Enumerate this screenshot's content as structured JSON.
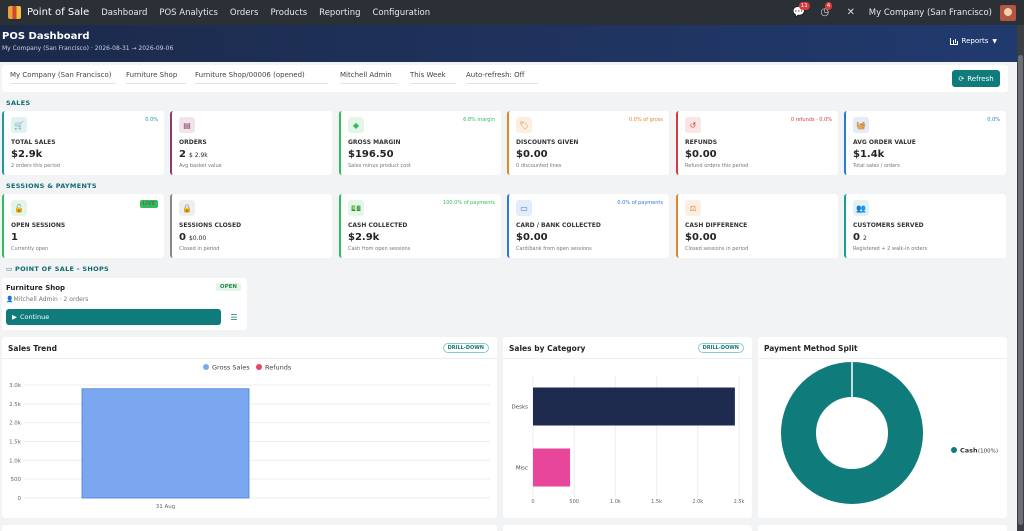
{
  "navbar": {
    "app_name": "Point of Sale",
    "items": [
      "Dashboard",
      "POS Analytics",
      "Orders",
      "Products",
      "Reporting",
      "Configuration"
    ],
    "messages_count": "11",
    "activity_count": "4",
    "company": "My Company (San Francisco)"
  },
  "header": {
    "title": "POS Dashboard",
    "subtitle": "My Company (San Francisco)  ·  2026-08-31 → 2026-09-06",
    "reports_label": "Reports"
  },
  "filters": {
    "company": "My Company (San Francisco)",
    "shop": "Furniture Shop",
    "session": "Furniture Shop/00006 (opened)",
    "user": "Mitchell Admin",
    "period": "This Week",
    "auto_refresh": "Auto-refresh: Off",
    "refresh_label": "Refresh"
  },
  "sales_section": {
    "label": "SALES",
    "cards": [
      {
        "icon": "cart-icon",
        "label": "TOTAL SALES",
        "value": "$2.9k",
        "extra": "",
        "sub": "2 orders this period",
        "tag": "0.0%",
        "color": "#1a9b9b"
      },
      {
        "icon": "receipt-icon",
        "label": "ORDERS",
        "value": "2",
        "extra": "$ 2.9k",
        "sub": "Avg basket value",
        "tag": "",
        "color": "#8e3a6a"
      },
      {
        "icon": "gem-icon",
        "label": "GROSS MARGIN",
        "value": "$196.50",
        "extra": "",
        "sub": "Sales minus product cost",
        "tag": "6.8% margin",
        "color": "#2ebf5a"
      },
      {
        "icon": "tag-icon",
        "label": "DISCOUNTS GIVEN",
        "value": "$0.00",
        "extra": "",
        "sub": "0 discounted lines",
        "tag": "0.0% of gross",
        "color": "#e0862a"
      },
      {
        "icon": "undo-icon",
        "label": "REFUNDS",
        "value": "$0.00",
        "extra": "",
        "sub": "Refund orders this period",
        "tag": "0 refunds · 0.0%",
        "color": "#d93b3b"
      },
      {
        "icon": "basket-icon",
        "label": "AVG ORDER VALUE",
        "value": "$1.4k",
        "extra": "",
        "sub": "Total sales / orders",
        "tag": "0.0%",
        "color": "#2a7ad9"
      }
    ]
  },
  "sessions_section": {
    "label": "SESSIONS & PAYMENTS",
    "cards": [
      {
        "icon": "unlock-icon",
        "label": "OPEN SESSIONS",
        "value": "1",
        "extra": "",
        "sub": "Currently open",
        "tag": "LIVE",
        "color": "#2ebf5a"
      },
      {
        "icon": "lock-icon",
        "label": "SESSIONS CLOSED",
        "value": "0",
        "extra": "$0.00",
        "sub": "Closed in period",
        "tag": "",
        "color": "#888888"
      },
      {
        "icon": "cash-icon",
        "label": "CASH COLLECTED",
        "value": "$2.9k",
        "extra": "",
        "sub": "Cash from open sessions",
        "tag": "100.0% of payments",
        "color": "#2ebf5a"
      },
      {
        "icon": "credit-card-icon",
        "label": "CARD / BANK COLLECTED",
        "value": "$0.00",
        "extra": "",
        "sub": "Card/bank from open sessions",
        "tag": "0.0% of payments",
        "color": "#2a7ad9"
      },
      {
        "icon": "scale-icon",
        "label": "CASH DIFFERENCE",
        "value": "$0.00",
        "extra": "",
        "sub": "Closed sessions in period",
        "tag": "",
        "color": "#e0862a"
      },
      {
        "icon": "users-icon",
        "label": "CUSTOMERS SERVED",
        "value": "0",
        "extra": "2",
        "sub": "Registered + 2 walk-in orders",
        "tag": "",
        "color": "#1a9b9b"
      }
    ]
  },
  "shops_section": {
    "label": "POINT OF SALE - SHOPS",
    "shop_name": "Furniture Shop",
    "shop_meta": "Mitchell Admin · 2 orders",
    "status": "OPEN",
    "continue_label": "Continue"
  },
  "panels": {
    "sales_trend_title": "Sales Trend",
    "sales_category_title": "Sales by Category",
    "payment_split_title": "Payment Method Split",
    "drill_label": "DRILL-DOWN"
  },
  "chart_data": [
    {
      "type": "bar",
      "title": "Sales Trend",
      "categories": [
        "31 Aug"
      ],
      "series": [
        {
          "name": "Gross Sales",
          "values": [
            2900
          ],
          "color": "#7aa7f0"
        },
        {
          "name": "Refunds",
          "values": [
            0
          ],
          "color": "#e8455f"
        }
      ],
      "ylim": [
        0,
        3000
      ],
      "yticks": [
        "0",
        "500",
        "1.0k",
        "1.5k",
        "2.0k",
        "2.5k",
        "3.0k"
      ],
      "legend": "top-center",
      "grid": true
    },
    {
      "type": "bar",
      "orientation": "horizontal",
      "title": "Sales by Category",
      "categories": [
        "Desks",
        "Misc"
      ],
      "values": [
        2450,
        450
      ],
      "colors": [
        "#1f2b4e",
        "#e8469a"
      ],
      "xlim": [
        0,
        2500
      ],
      "xticks": [
        "0",
        "500",
        "1.0k",
        "1.5k",
        "2.0k",
        "2.5k"
      ],
      "grid": true
    },
    {
      "type": "pie",
      "title": "Payment Method Split",
      "labels": [
        "Cash"
      ],
      "values": [
        100
      ],
      "legend_text": "Cash",
      "legend_pct": "(100%)",
      "colors": [
        "#0f7b7b"
      ],
      "legend": "right"
    }
  ]
}
